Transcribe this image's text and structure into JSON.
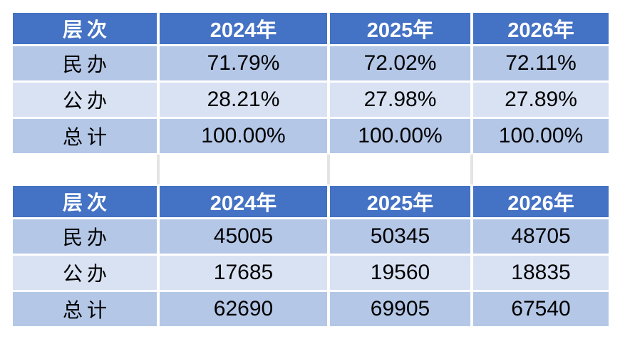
{
  "colors": {
    "header_bg": "#4472C4",
    "row_band_primary": "#B4C7E7",
    "row_band_secondary": "#D9E2F3",
    "header_text": "#FFFFFF",
    "body_text": "#000000",
    "spacer_divider": "#E4E4E4",
    "canvas_bg": "#FFFFFF"
  },
  "tables": [
    {
      "name": "enrollment-percentage-table",
      "columns": [
        "层次",
        "2024年",
        "2025年",
        "2026年"
      ],
      "rows": [
        {
          "label": "民办",
          "values": [
            "71.79%",
            "72.02%",
            "72.11%"
          ]
        },
        {
          "label": "公办",
          "values": [
            "28.21%",
            "27.98%",
            "27.89%"
          ]
        },
        {
          "label": "总计",
          "values": [
            "100.00%",
            "100.00%",
            "100.00%"
          ]
        }
      ]
    },
    {
      "name": "enrollment-count-table",
      "columns": [
        "层次",
        "2024年",
        "2025年",
        "2026年"
      ],
      "rows": [
        {
          "label": "民办",
          "values": [
            "45005",
            "50345",
            "48705"
          ]
        },
        {
          "label": "公办",
          "values": [
            "17685",
            "19560",
            "18835"
          ]
        },
        {
          "label": "总计",
          "values": [
            "62690",
            "69905",
            "67540"
          ]
        }
      ]
    }
  ]
}
